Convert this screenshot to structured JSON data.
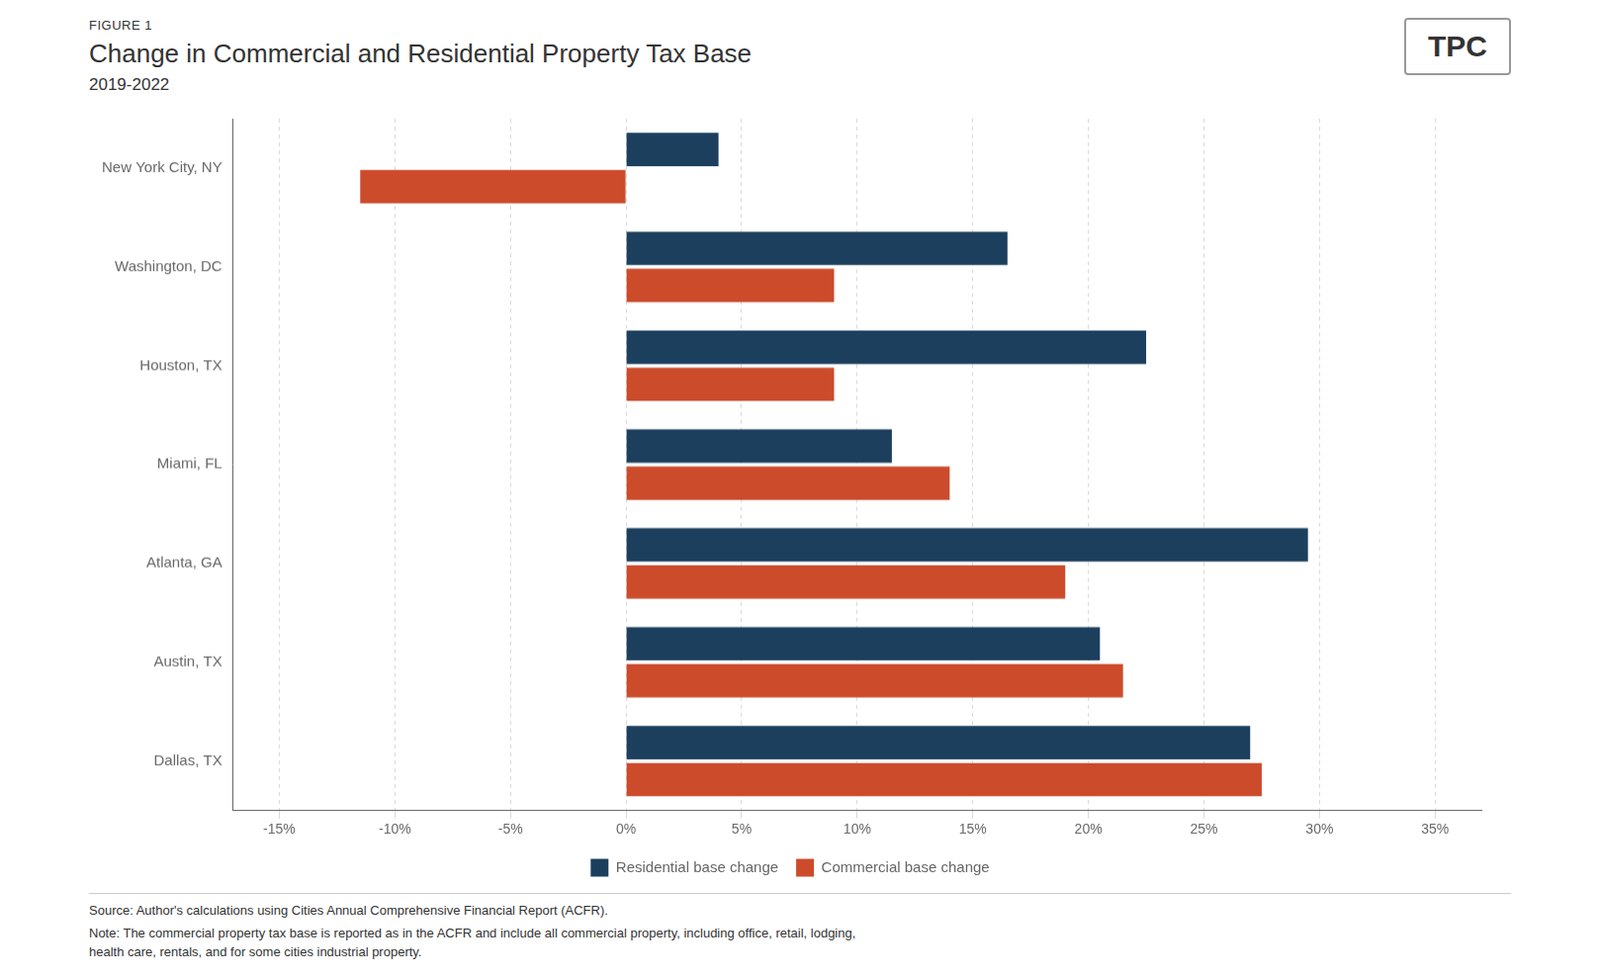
{
  "chart_data": {
    "type": "bar",
    "orientation": "horizontal",
    "figure_label": "FIGURE 1",
    "title": "Change in Commercial and Residential Property Tax Base",
    "subtitle": "2019-2022",
    "categories": [
      "New York City, NY",
      "Washington, DC",
      "Houston, TX",
      "Miami, FL",
      "Atlanta, GA",
      "Austin, TX",
      "Dallas, TX"
    ],
    "series": [
      {
        "name": "Residential base change",
        "color": "#1c3f5e",
        "values": [
          4.0,
          16.5,
          22.5,
          11.5,
          29.5,
          20.5,
          27.0
        ]
      },
      {
        "name": "Commercial base change",
        "color": "#cc4b2b",
        "values": [
          -11.5,
          9.0,
          9.0,
          14.0,
          19.0,
          21.5,
          27.5
        ]
      }
    ],
    "xlim": [
      -17,
      37
    ],
    "xticks": [
      {
        "value": -15,
        "label": "-15%"
      },
      {
        "value": -10,
        "label": "-10%"
      },
      {
        "value": -5,
        "label": "-5%"
      },
      {
        "value": 0,
        "label": "0%"
      },
      {
        "value": 5,
        "label": "5%"
      },
      {
        "value": 10,
        "label": "10%"
      },
      {
        "value": 15,
        "label": "15%"
      },
      {
        "value": 20,
        "label": "20%"
      },
      {
        "value": 25,
        "label": "25%"
      },
      {
        "value": 30,
        "label": "30%"
      },
      {
        "value": 35,
        "label": "35%"
      }
    ],
    "grid": true,
    "legend": "bottom",
    "source": "Source: Author's calculations using Cities Annual Comprehensive Financial Report (ACFR).",
    "note": "Note: The commercial property tax base is reported as in the ACFR and include all commercial property, including office, retail, lodging,\nhealth care, rentals, and for some cities industrial property.",
    "logo_text": "TPC"
  }
}
